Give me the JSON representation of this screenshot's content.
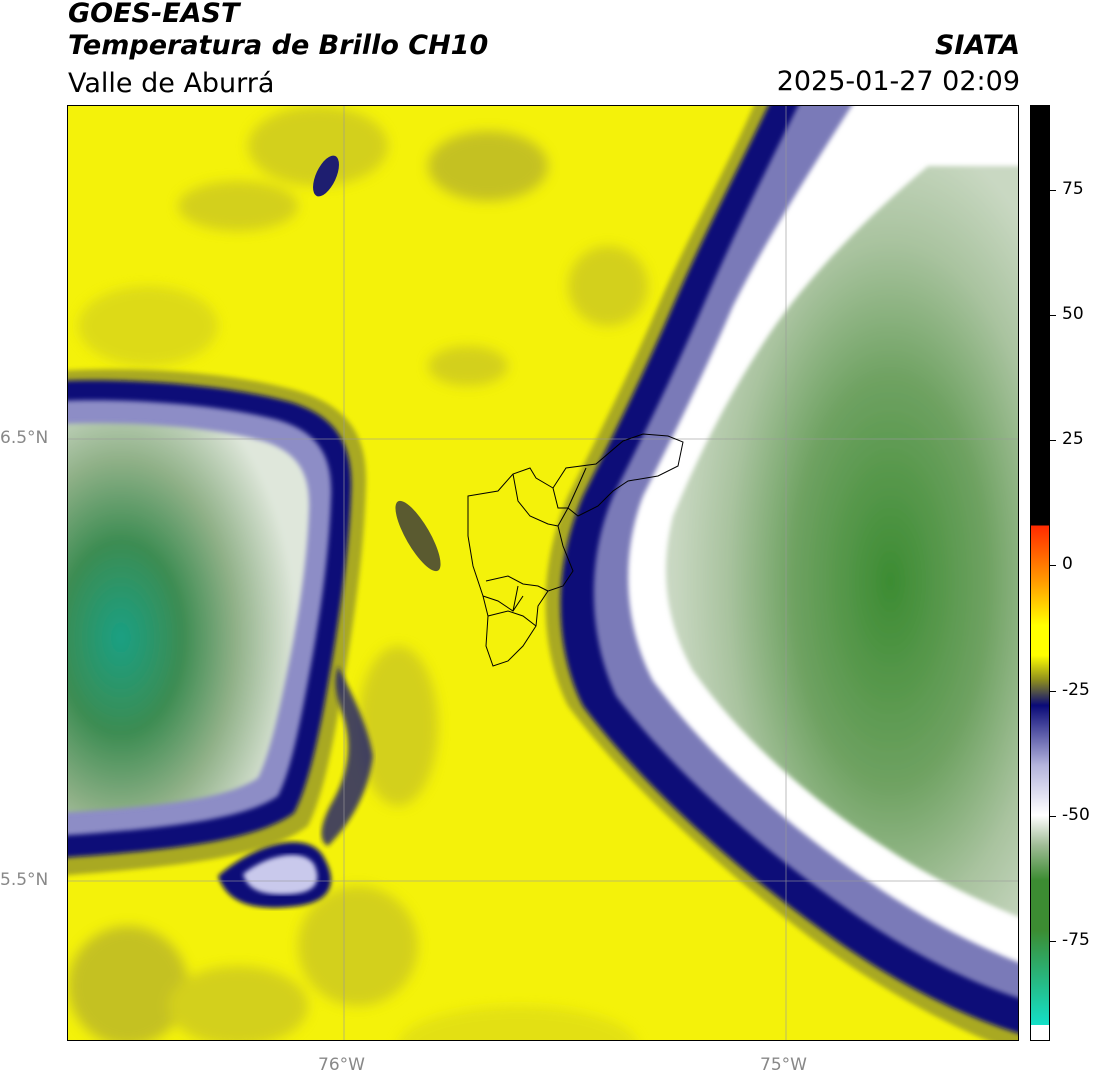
{
  "header": {
    "satellite": "GOES-EAST",
    "product": "Temperatura de Brillo CH10",
    "region": "Valle de Aburrá",
    "agency": "SIATA",
    "datetime": "2025-01-27 02:09"
  },
  "axes": {
    "lat_labels": [
      "6.5°N",
      "5.5°N"
    ],
    "lon_labels": [
      "76°W",
      "75°W"
    ]
  },
  "colorbar": {
    "ticks": [
      "75",
      "50",
      "25",
      "0",
      "-25",
      "-50",
      "-75"
    ],
    "tick_values": [
      75,
      50,
      25,
      0,
      -25,
      -50,
      -75
    ],
    "min": -95,
    "max": 92,
    "colors": {
      "warm_black": "#000000",
      "hot_red": "#ff2a00",
      "orange": "#ff9900",
      "yellow": "#ffff00",
      "olive": "#8c8c1e",
      "navy": "#0a0a78",
      "lavender": "#b4b4dc",
      "white": "#ffffff",
      "sage": "#a0bc96",
      "green": "#3c8c32",
      "teal": "#14e0c8"
    }
  }
}
